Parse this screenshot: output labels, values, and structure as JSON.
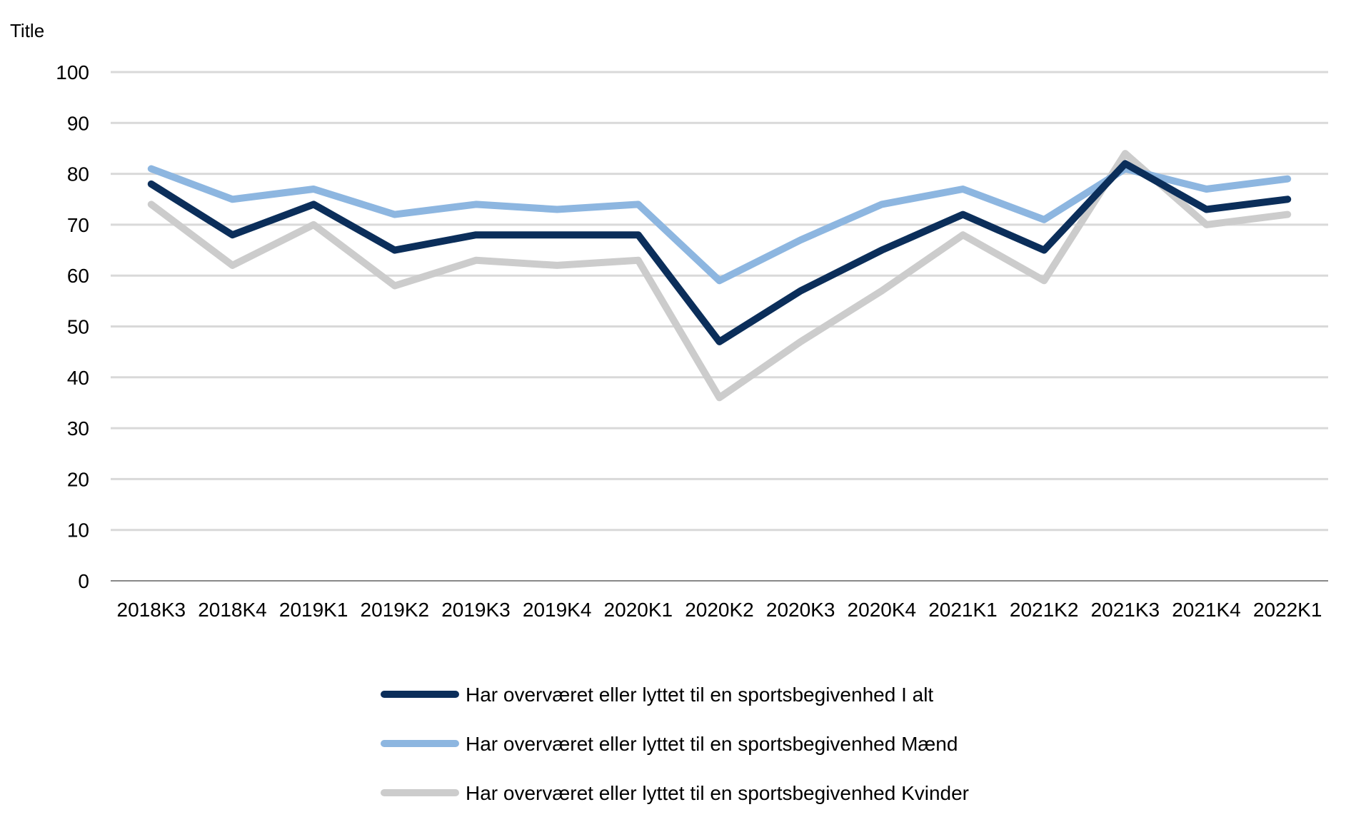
{
  "chart_data": {
    "type": "line",
    "ylabel": "Title",
    "ylim": [
      0,
      100
    ],
    "yticks": [
      0,
      10,
      20,
      30,
      40,
      50,
      60,
      70,
      80,
      90,
      100
    ],
    "categories": [
      "2018K3",
      "2018K4",
      "2019K1",
      "2019K2",
      "2019K3",
      "2019K4",
      "2020K1",
      "2020K2",
      "2020K3",
      "2020K4",
      "2021K1",
      "2021K2",
      "2021K3",
      "2021K4",
      "2022K1"
    ],
    "grid": true,
    "legend_position": "bottom",
    "series": [
      {
        "name": "Har overværet eller lyttet til en sportsbegivenhed I alt",
        "color": "#0b2e5a",
        "values": [
          78,
          68,
          74,
          65,
          68,
          68,
          68,
          47,
          57,
          65,
          72,
          65,
          82,
          73,
          75
        ]
      },
      {
        "name": "Har overværet eller lyttet til en sportsbegivenhed Mænd",
        "color": "#8db6e0",
        "values": [
          81,
          75,
          77,
          72,
          74,
          73,
          74,
          59,
          67,
          74,
          77,
          71,
          81,
          77,
          79
        ]
      },
      {
        "name": "Har overværet eller lyttet til en sportsbegivenhed Kvinder",
        "color": "#cccccc",
        "values": [
          74,
          62,
          70,
          58,
          63,
          62,
          63,
          36,
          47,
          57,
          68,
          59,
          84,
          70,
          72
        ]
      }
    ]
  }
}
